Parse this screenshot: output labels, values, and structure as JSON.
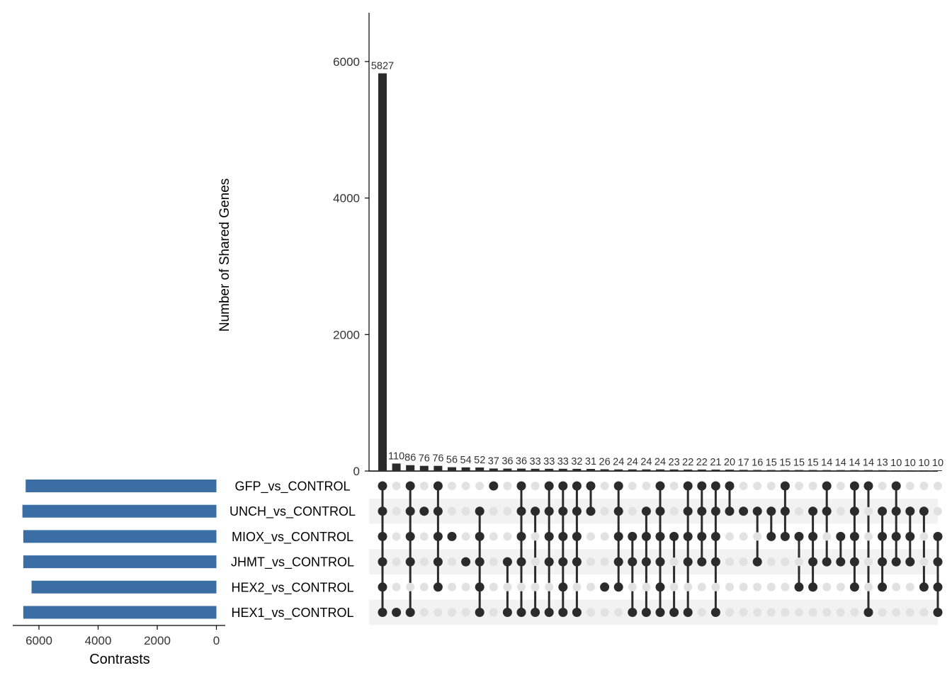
{
  "chart_data": {
    "type": "upset",
    "title": "",
    "ylabel": "Number of Shared Genes",
    "xlabel_sets": "Contrasts",
    "y_ticks": [
      0,
      2000,
      4000,
      6000
    ],
    "ylim": [
      0,
      6700
    ],
    "set_size_ticks": [
      6000,
      4000,
      2000,
      0
    ],
    "set_size_xlim": [
      6700,
      0
    ],
    "sets": [
      "GFP_vs_CONTROL",
      "UNCH_vs_CONTROL",
      "MIOX_vs_CONTROL",
      "JHMT_vs_CONTROL",
      "HEX2_vs_CONTROL",
      "HEX1_vs_CONTROL"
    ],
    "set_sizes": [
      6450,
      6560,
      6530,
      6530,
      6250,
      6530
    ],
    "intersection_sizes": [
      5827,
      110,
      86,
      76,
      76,
      56,
      54,
      52,
      37,
      36,
      36,
      33,
      33,
      33,
      32,
      31,
      26,
      24,
      24,
      24,
      24,
      23,
      22,
      22,
      21,
      20,
      17,
      16,
      15,
      15,
      15,
      15,
      14,
      14,
      14,
      14,
      13,
      10,
      10,
      10,
      10
    ],
    "intersection_members": [
      [
        0,
        1,
        2,
        3,
        4,
        5
      ],
      [
        5
      ],
      [
        0,
        1,
        2,
        3,
        5
      ],
      [
        1
      ],
      [
        0,
        1,
        2,
        3,
        4
      ],
      [
        2
      ],
      [
        3
      ],
      [
        1,
        2,
        3,
        4,
        5
      ],
      [
        0
      ],
      [
        3,
        5
      ],
      [
        0,
        1,
        2,
        3,
        5
      ],
      [
        1,
        5
      ],
      [
        0,
        1,
        2,
        3,
        5
      ],
      [
        0,
        1,
        2,
        3,
        4,
        5
      ],
      [
        0,
        1,
        2,
        3,
        5
      ],
      [
        0,
        1
      ],
      [
        4
      ],
      [
        0,
        1,
        2,
        3,
        4
      ],
      [
        2,
        3,
        5
      ],
      [
        1,
        2,
        3,
        5
      ],
      [
        0,
        1,
        2,
        3,
        4,
        5
      ],
      [
        2,
        5
      ],
      [
        0,
        1,
        2,
        3,
        5
      ],
      [
        0,
        1,
        2,
        3
      ],
      [
        0,
        1,
        2,
        3,
        5
      ],
      [
        0,
        1
      ],
      [
        1
      ],
      [
        1,
        3
      ],
      [
        1,
        2
      ],
      [
        0,
        1,
        2
      ],
      [
        2,
        4
      ],
      [
        1,
        2,
        3,
        4
      ],
      [
        0,
        1,
        3
      ],
      [
        2,
        3
      ],
      [
        0,
        1,
        2,
        3,
        4
      ],
      [
        0,
        5
      ],
      [
        1,
        2,
        3,
        4
      ],
      [
        0,
        1,
        2,
        3
      ],
      [
        1,
        2,
        3
      ],
      [
        1,
        4
      ],
      [
        2,
        3,
        4,
        5
      ]
    ],
    "colors": {
      "bar": "#2b2b2b",
      "set_bar": "#3a6ea5",
      "dot_on": "#2b2b2b",
      "dot_off": "#e2e2e2",
      "stripe": "#f2f2f2",
      "text": "#333333"
    }
  }
}
